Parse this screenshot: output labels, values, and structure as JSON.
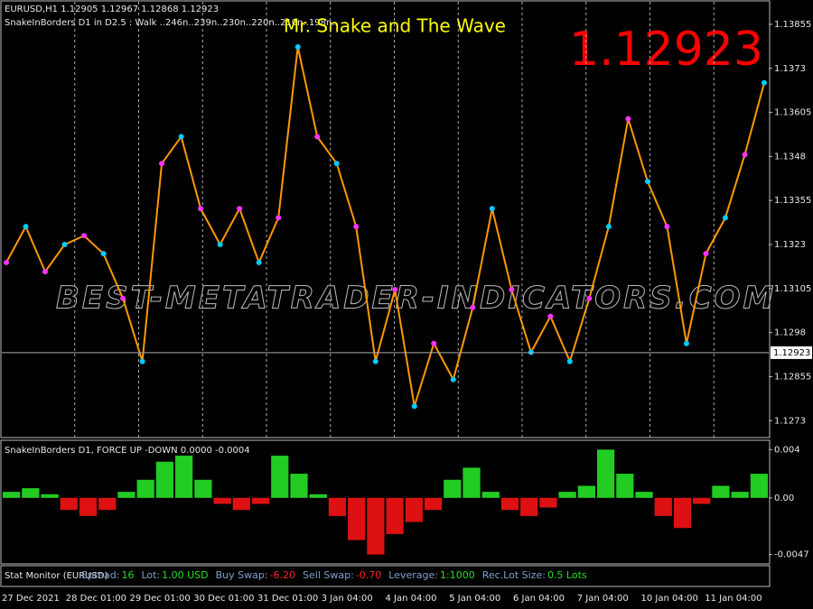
{
  "header": {
    "symbol_line": "EURUSD,H1  1.12905 1.12967 1.12868 1.12923",
    "indicator_line": "SnakeInBorders D1 in D2.5 :   Walk ..246n..239n..230n..220n..210n..198n..",
    "title": "Mr. Snake and The Wave",
    "big_price": "1.12923"
  },
  "watermark": "BEST-METATRADER-INDICATORS.COM",
  "chart_data": [
    {
      "type": "line",
      "color": "#ff9900",
      "values": [
        1.13179,
        1.13281,
        1.13153,
        1.1323,
        1.13255,
        1.13204,
        1.13077,
        1.12898,
        1.1346,
        1.13536,
        1.13332,
        1.1323,
        1.13332,
        1.13179,
        1.13306,
        1.13791,
        1.13536,
        1.1346,
        1.13281,
        1.12898,
        1.13102,
        1.12771,
        1.12949,
        1.12847,
        1.13051,
        1.13332,
        1.13102,
        1.12924,
        1.13026,
        1.12898,
        1.13077,
        1.13281,
        1.13587,
        1.13409,
        1.13281,
        1.12949,
        1.13204,
        1.13306,
        1.13485,
        1.13689
      ],
      "ylim": [
        1.12682,
        1.13919
      ],
      "yticks": [
        1.13855,
        1.1373,
        1.13605,
        1.1348,
        1.13355,
        1.1323,
        1.13105,
        1.1298,
        1.12855,
        1.1273
      ],
      "current": {
        "value": 1.12923,
        "label": "1.12923"
      }
    },
    {
      "type": "bar",
      "title": "SnakeInBorders D1, FORCE UP -DOWN  0.0000 -0.0004",
      "up_color": "#22cc22",
      "down_color": "#dd1111",
      "values": [
        0.0005,
        0.0008,
        0.0003,
        -0.001,
        -0.0015,
        -0.001,
        0.0005,
        0.0015,
        0.003,
        0.0035,
        0.0015,
        -0.0005,
        -0.001,
        -0.0005,
        0.0035,
        0.002,
        0.0003,
        -0.0015,
        -0.0035,
        -0.0047,
        -0.003,
        -0.002,
        -0.001,
        0.0015,
        0.0025,
        0.0005,
        -0.001,
        -0.0015,
        -0.0008,
        0.0005,
        0.001,
        0.004,
        0.002,
        0.0005,
        -0.0015,
        -0.0025,
        -0.0005,
        0.001,
        0.0005,
        0.002
      ],
      "ylim": [
        -0.0054,
        0.0047
      ],
      "yticks": [
        0.004,
        {
          "value": 0,
          "label": "0.00"
        },
        -0.0047
      ]
    }
  ],
  "status": {
    "title": "Stat Monitor (EURUSD)",
    "items": [
      {
        "label": "Spread:",
        "value": "16"
      },
      {
        "label": "Lot:",
        "value": "1.00 USD"
      },
      {
        "label": "Buy Swap:",
        "value": "-6.20"
      },
      {
        "label": "Sell Swap:",
        "value": "-0.70"
      },
      {
        "label": "Leverage:",
        "value": "1:1000"
      },
      {
        "label": "Rec.Lot Size:",
        "value": "0.5 Lots"
      }
    ]
  },
  "time_axis": [
    "27 Dec 2021",
    "28 Dec 01:00",
    "29 Dec 01:00",
    "30 Dec 01:00",
    "31 Dec 01:00",
    "3 Jan 04:00",
    "4 Jan 04:00",
    "5 Jan 04:00",
    "6 Jan 04:00",
    "7 Jan 04:00",
    "10 Jan 04:00",
    "11 Jan 04:00"
  ]
}
